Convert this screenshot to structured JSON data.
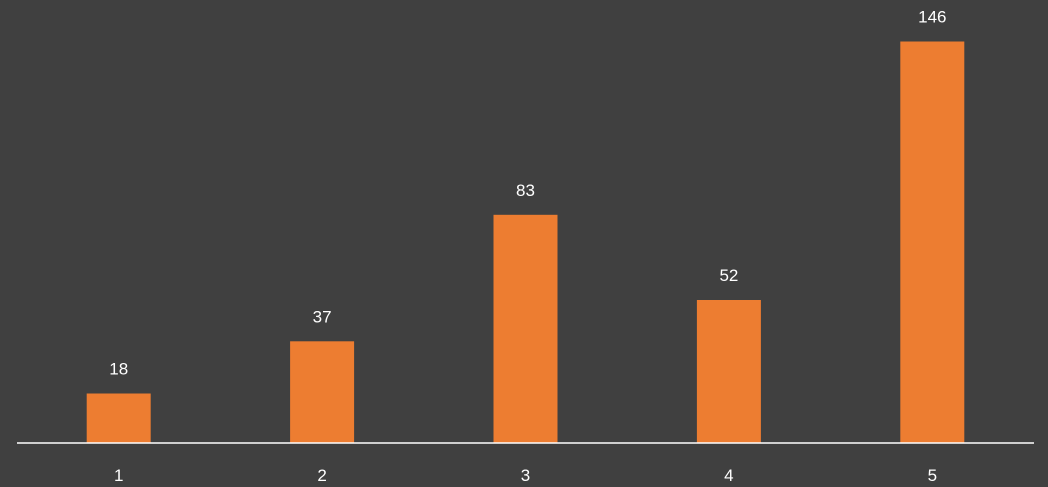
{
  "chart_data": {
    "type": "bar",
    "categories": [
      "1",
      "2",
      "3",
      "4",
      "5"
    ],
    "values": [
      18,
      37,
      83,
      52,
      146
    ],
    "data_labels": [
      "18",
      "37",
      "83",
      "52",
      "146"
    ],
    "title": "",
    "xlabel": "",
    "ylabel": "",
    "ylim": [
      0,
      150
    ],
    "grid": false,
    "legend": "none",
    "colors": {
      "background": "#404040",
      "bar": "#ED7D31",
      "axis": "#ffffff",
      "text": "#ffffff"
    }
  }
}
